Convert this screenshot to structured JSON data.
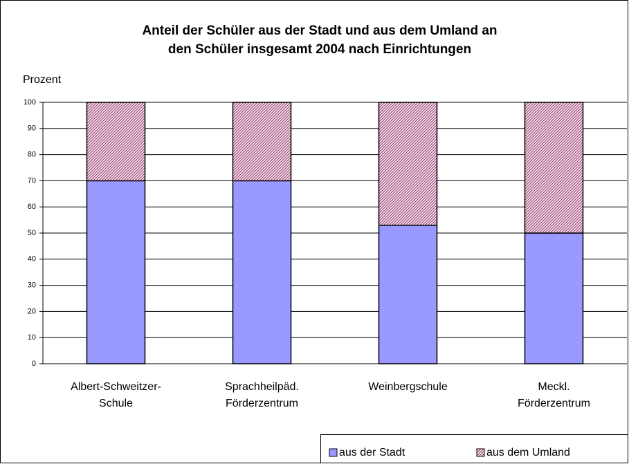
{
  "chart_data": {
    "type": "stacked_bar",
    "title": [
      "Anteil der Schüler aus der Stadt und aus dem Umland an",
      "den Schüler insgesamt 2004 nach Einrichtungen"
    ],
    "y_label": "Prozent",
    "categories": [
      "Albert-Schweitzer-\nSchule",
      "Sprachheilpäd.\nFörderzentrum",
      "Weinbergschule",
      "Meckl.\nFörderzentrum"
    ],
    "series": [
      {
        "name": "aus der Stadt",
        "color": "#9999ff",
        "values": [
          70,
          70,
          53,
          50
        ]
      },
      {
        "name": "aus dem Umland",
        "color": "#993366",
        "pattern": "hatch",
        "values": [
          30,
          30,
          47,
          50
        ]
      }
    ],
    "ylim": [
      0,
      100
    ],
    "yticks": [
      0,
      10,
      20,
      30,
      40,
      50,
      60,
      70,
      80,
      90,
      100
    ],
    "grid": true,
    "legend": "bottom-right"
  }
}
